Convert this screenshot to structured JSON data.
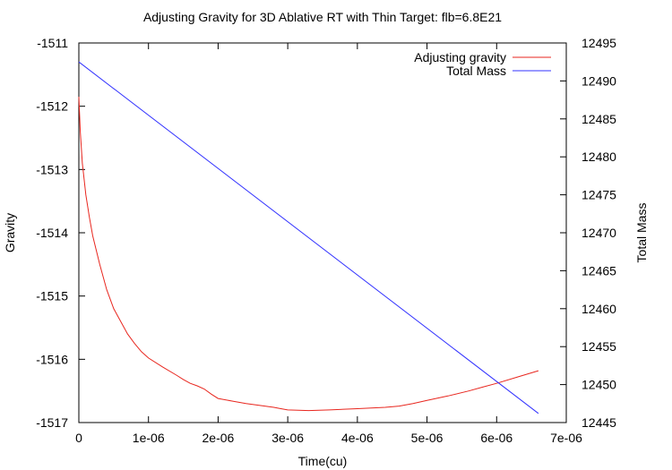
{
  "chart_data": {
    "type": "line",
    "title": "Adjusting Gravity for 3D Ablative RT with Thin Target: flb=6.8E21",
    "xlabel": "Time(cu)",
    "ylabel": "Gravity",
    "y2label": "Total Mass",
    "xlim": [
      0,
      7e-06
    ],
    "ylim": [
      -1517,
      -1511
    ],
    "y2lim": [
      12445,
      12495
    ],
    "x_ticks": [
      "0",
      "1e-06",
      "2e-06",
      "3e-06",
      "4e-06",
      "5e-06",
      "6e-06",
      "7e-06"
    ],
    "y_ticks": [
      "-1517",
      "-1516",
      "-1515",
      "-1514",
      "-1513",
      "-1512",
      "-1511"
    ],
    "y2_ticks": [
      "12445",
      "12450",
      "12455",
      "12460",
      "12465",
      "12470",
      "12475",
      "12480",
      "12485",
      "12490",
      "12495"
    ],
    "legend_position": "top-right",
    "grid": false,
    "series": [
      {
        "name": "Adjusting gravity",
        "axis": "left",
        "color": "#e8261e",
        "x": [
          0,
          2e-08,
          5e-08,
          1e-07,
          1.5e-07,
          2e-07,
          3e-07,
          4e-07,
          5e-07,
          6e-07,
          7e-07,
          8e-07,
          9e-07,
          1e-06,
          1.2e-06,
          1.4e-06,
          1.5e-06,
          1.6e-06,
          1.7e-06,
          1.8e-06,
          1.9e-06,
          2e-06,
          2.2e-06,
          2.4e-06,
          2.6e-06,
          2.8e-06,
          2.9e-06,
          3e-06,
          3.3e-06,
          3.6e-06,
          4e-06,
          4.4e-06,
          4.6e-06,
          4.8e-06,
          5e-06,
          5.3e-06,
          5.6e-06,
          5.8e-06,
          6e-06,
          6.3e-06,
          6.6e-06
        ],
        "y": [
          -1511.85,
          -1512.4,
          -1512.9,
          -1513.4,
          -1513.75,
          -1514.05,
          -1514.5,
          -1514.9,
          -1515.2,
          -1515.4,
          -1515.6,
          -1515.75,
          -1515.88,
          -1515.98,
          -1516.12,
          -1516.25,
          -1516.32,
          -1516.38,
          -1516.42,
          -1516.47,
          -1516.55,
          -1516.62,
          -1516.66,
          -1516.7,
          -1516.73,
          -1516.76,
          -1516.78,
          -1516.8,
          -1516.81,
          -1516.8,
          -1516.78,
          -1516.76,
          -1516.74,
          -1516.7,
          -1516.65,
          -1516.58,
          -1516.5,
          -1516.44,
          -1516.38,
          -1516.28,
          -1516.18
        ]
      },
      {
        "name": "Total Mass",
        "axis": "right",
        "color": "#3333ff",
        "x": [
          0,
          6.6e-06
        ],
        "y": [
          12492.5,
          12446.2
        ]
      }
    ]
  }
}
